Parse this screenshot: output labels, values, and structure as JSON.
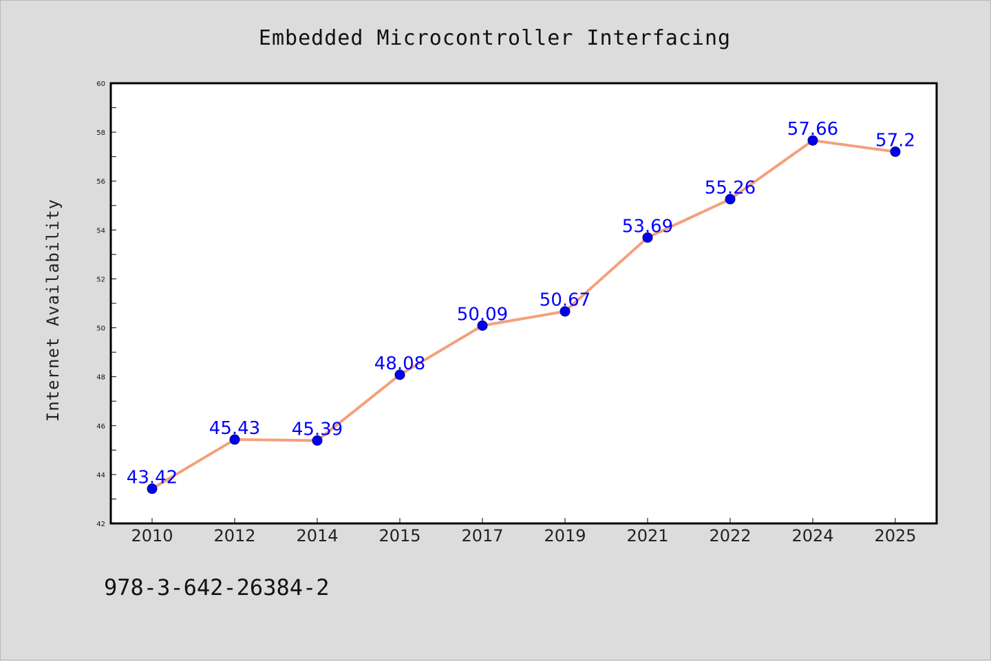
{
  "chart_data": {
    "type": "line",
    "title": "Embedded Microcontroller Interfacing",
    "xlabel": "",
    "ylabel": "Internet Availability",
    "categories": [
      "2010",
      "2012",
      "2014",
      "2015",
      "2017",
      "2019",
      "2021",
      "2022",
      "2024",
      "2025"
    ],
    "series": [
      {
        "values": [
          43.42,
          45.43,
          45.39,
          48.08,
          50.09,
          50.67,
          53.69,
          55.26,
          57.66,
          57.2
        ],
        "line_color": "#f4a07c",
        "marker_color": "#0000ee"
      }
    ],
    "data_labels": [
      "43.42",
      "45.43",
      "45.39",
      "48.08",
      "50.09",
      "50.67",
      "53.69",
      "55.26",
      "57.66",
      "57.2"
    ],
    "ylim": [
      42,
      60
    ],
    "yticks": [
      42,
      44,
      46,
      48,
      50,
      52,
      54,
      56,
      58,
      60
    ],
    "grid": false,
    "legend": "none"
  },
  "footer": {
    "isbn": "978-3-642-26384-2"
  },
  "colors": {
    "background": "#dcdcdc",
    "plot_background": "#ffffff",
    "label_color": "#0000ff"
  }
}
